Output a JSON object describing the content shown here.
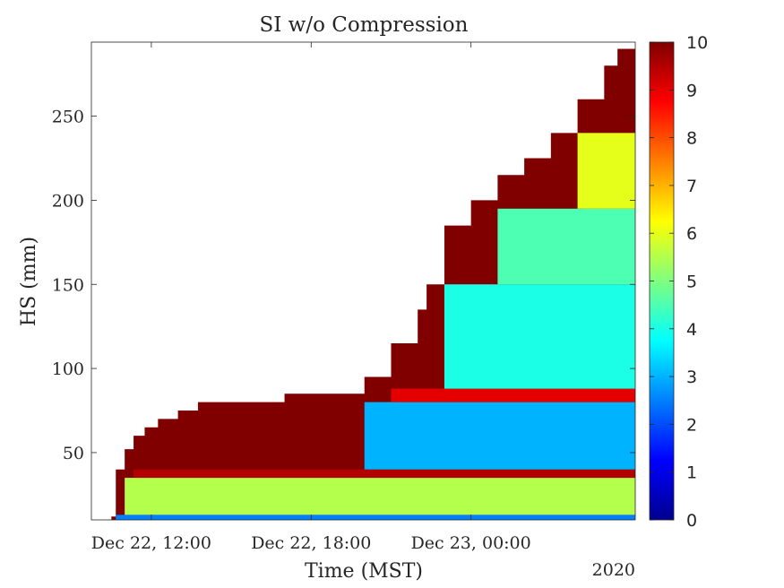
{
  "chart_data": {
    "type": "heatmap",
    "title": "SI w/o Compression",
    "xlabel": "Time (MST)",
    "ylabel": "HS (mm)",
    "year_label": "2020",
    "x_range": [
      "2020-12-22 09:45",
      "2020-12-23 06:10"
    ],
    "y_range": [
      10,
      294
    ],
    "x_ticks": [
      {
        "t": "2020-12-22 12:00",
        "label": "Dec 22, 12:00"
      },
      {
        "t": "2020-12-22 18:00",
        "label": "Dec 22, 18:00"
      },
      {
        "t": "2020-12-23 00:00",
        "label": "Dec 23, 00:00"
      }
    ],
    "y_ticks": [
      50,
      100,
      150,
      200,
      250
    ],
    "colorbar": {
      "colormap": "jet",
      "min": 0,
      "max": 10,
      "ticks": [
        0,
        1,
        2,
        3,
        4,
        5,
        6,
        7,
        8,
        9,
        10
      ]
    },
    "snow_surface": {
      "description_free": true,
      "time": [
        "2020-12-22 10:30",
        "2020-12-22 10:40",
        "2020-12-22 11:00",
        "2020-12-22 11:20",
        "2020-12-22 11:45",
        "2020-12-22 12:15",
        "2020-12-22 13:00",
        "2020-12-22 13:45",
        "2020-12-22 16:40",
        "2020-12-22 17:00",
        "2020-12-22 18:00",
        "2020-12-22 19:00",
        "2020-12-22 20:00",
        "2020-12-22 21:00",
        "2020-12-22 22:00",
        "2020-12-22 22:20",
        "2020-12-22 23:00",
        "2020-12-23 00:00",
        "2020-12-23 01:00",
        "2020-12-23 02:00",
        "2020-12-23 03:00",
        "2020-12-23 04:00",
        "2020-12-23 05:00",
        "2020-12-23 05:30",
        "2020-12-23 06:10"
      ],
      "hs": [
        12,
        40,
        52,
        60,
        65,
        70,
        75,
        80,
        80,
        85,
        85,
        85,
        95,
        115,
        135,
        150,
        185,
        200,
        215,
        225,
        240,
        260,
        280,
        290,
        290
      ]
    },
    "bands": [
      {
        "hs_low": 10,
        "hs_high": 13,
        "si": 2.5
      },
      {
        "hs_low": 13,
        "hs_high": 35,
        "si": 5.5
      },
      {
        "hs_low": 35,
        "hs_high": 40,
        "si": 9.5
      },
      {
        "hs_low": 40,
        "hs_high": 80,
        "si": 3.0
      },
      {
        "hs_low": 80,
        "hs_high": 88,
        "si": 9.0
      },
      {
        "hs_low": 88,
        "hs_high": 150,
        "si": 4.0
      },
      {
        "hs_low": 150,
        "hs_high": 195,
        "si": 4.5
      },
      {
        "hs_low": 195,
        "hs_high": 240,
        "si": 6.0
      }
    ]
  }
}
